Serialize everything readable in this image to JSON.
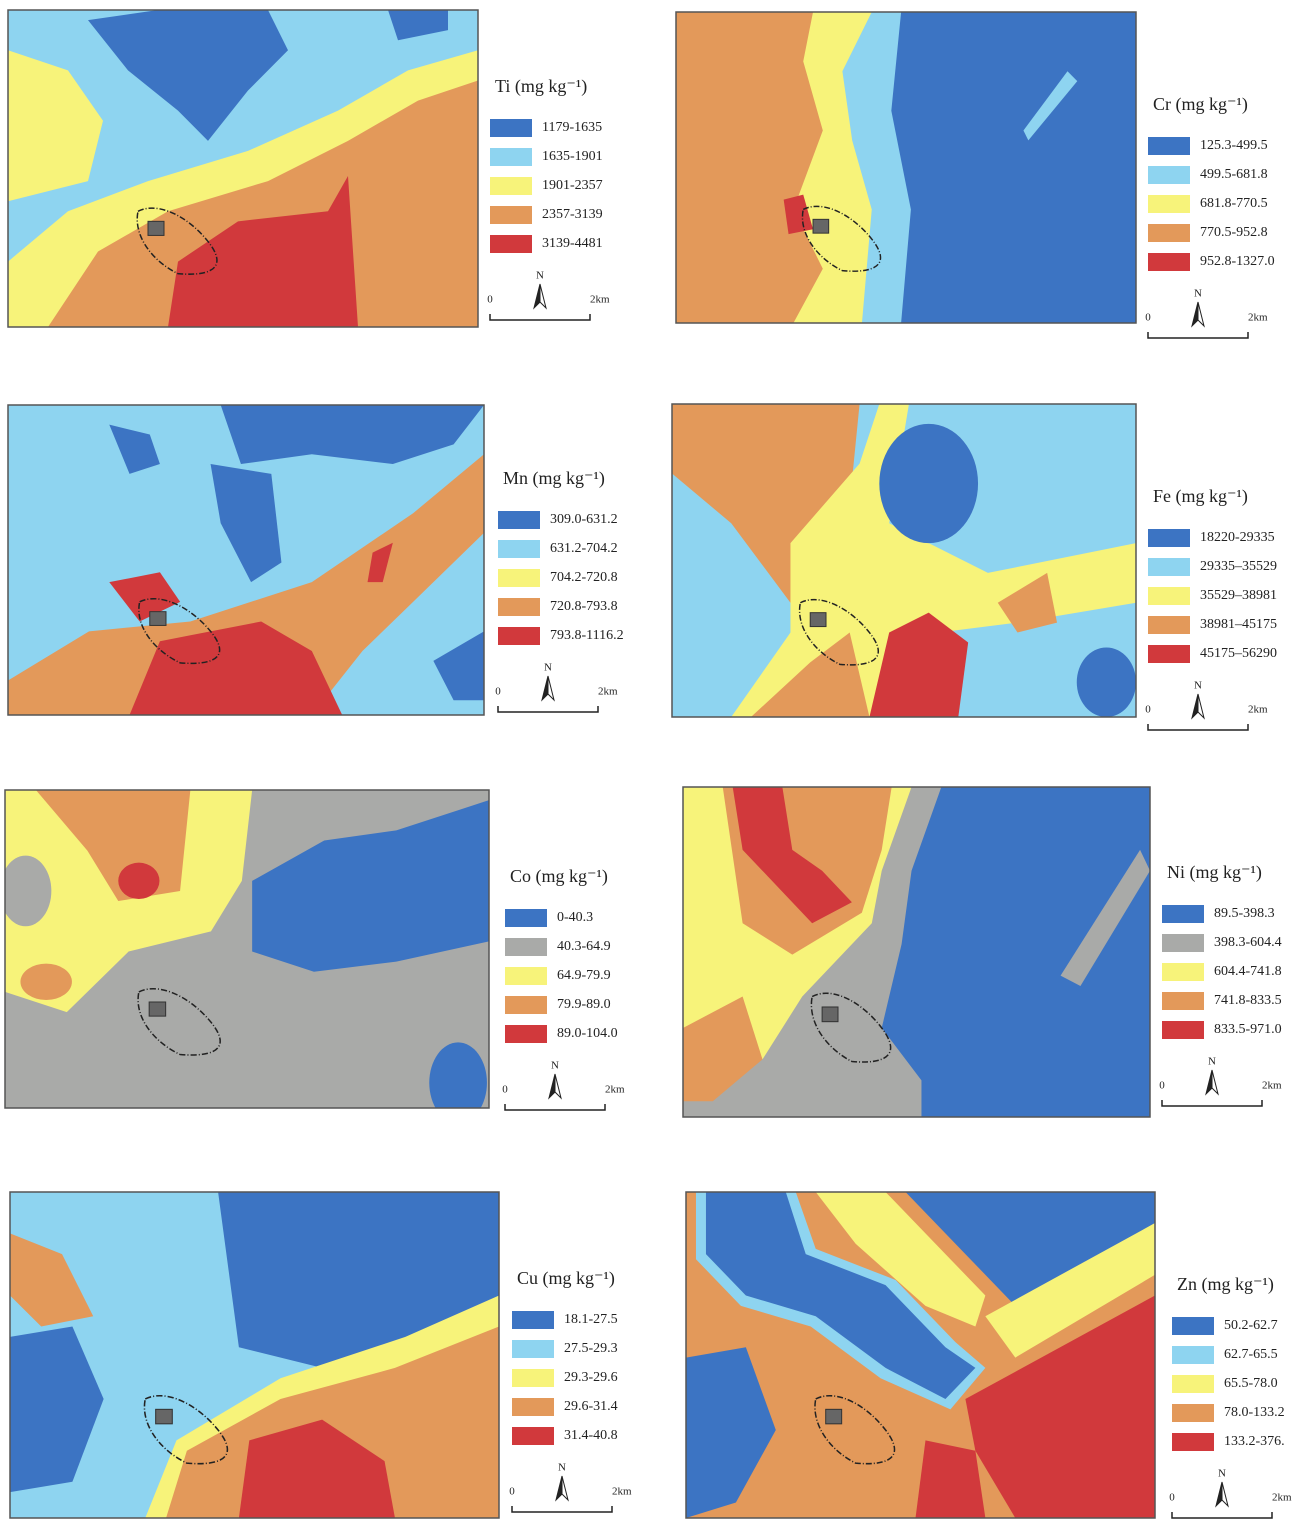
{
  "panels": [
    {
      "legend_title": "Ti (mg kg⁻¹)",
      "north": "N",
      "scale": [
        "0",
        "2km"
      ],
      "classes": [
        {
          "label": "1179-1635",
          "color": "#3c74c3"
        },
        {
          "label": "1635-1901",
          "color": "#8ed4f0"
        },
        {
          "label": "1901-2357",
          "color": "#f7f37a"
        },
        {
          "label": "2357-3139",
          "color": "#e3995a"
        },
        {
          "label": "3139-4481",
          "color": "#d1393c"
        }
      ]
    },
    {
      "legend_title": "Cr (mg kg⁻¹)",
      "north": "N",
      "scale": [
        "0",
        "2km"
      ],
      "classes": [
        {
          "label": "125.3-499.5",
          "color": "#3c74c3"
        },
        {
          "label": "499.5-681.8",
          "color": "#8ed4f0"
        },
        {
          "label": "681.8-770.5",
          "color": "#f7f37a"
        },
        {
          "label": "770.5-952.8",
          "color": "#e3995a"
        },
        {
          "label": "952.8-1327.0",
          "color": "#d1393c"
        }
      ]
    },
    {
      "legend_title": "Mn (mg kg⁻¹)",
      "north": "N",
      "scale": [
        "0",
        "2km"
      ],
      "classes": [
        {
          "label": "309.0-631.2",
          "color": "#3c74c3"
        },
        {
          "label": "631.2-704.2",
          "color": "#8ed4f0"
        },
        {
          "label": "704.2-720.8",
          "color": "#f7f37a"
        },
        {
          "label": "720.8-793.8",
          "color": "#e3995a"
        },
        {
          "label": "793.8-1116.2",
          "color": "#d1393c"
        }
      ]
    },
    {
      "legend_title": "Fe (mg kg⁻¹)",
      "north": "N",
      "scale": [
        "0",
        "2km"
      ],
      "classes": [
        {
          "label": "18220-29335",
          "color": "#3c74c3"
        },
        {
          "label": "29335–35529",
          "color": "#8ed4f0"
        },
        {
          "label": "35529–38981",
          "color": "#f7f37a"
        },
        {
          "label": "38981–45175",
          "color": "#e3995a"
        },
        {
          "label": "45175–56290",
          "color": "#d1393c"
        }
      ]
    },
    {
      "legend_title": "Co (mg kg⁻¹)",
      "north": "N",
      "scale": [
        "0",
        "2km"
      ],
      "classes": [
        {
          "label": "0-40.3",
          "color": "#3c74c3"
        },
        {
          "label": "40.3-64.9",
          "color": "#a9aaa8"
        },
        {
          "label": "64.9-79.9",
          "color": "#f7f37a"
        },
        {
          "label": "79.9-89.0",
          "color": "#e3995a"
        },
        {
          "label": "89.0-104.0",
          "color": "#d1393c"
        }
      ]
    },
    {
      "legend_title": "Ni (mg kg⁻¹)",
      "north": "N",
      "scale": [
        "0",
        "2km"
      ],
      "classes": [
        {
          "label": "89.5-398.3",
          "color": "#3c74c3"
        },
        {
          "label": "398.3-604.4",
          "color": "#a9aaa8"
        },
        {
          "label": "604.4-741.8",
          "color": "#f7f37a"
        },
        {
          "label": "741.8-833.5",
          "color": "#e3995a"
        },
        {
          "label": "833.5-971.0",
          "color": "#d1393c"
        }
      ]
    },
    {
      "legend_title": "Cu (mg kg⁻¹)",
      "north": "N",
      "scale": [
        "0",
        "2km"
      ],
      "classes": [
        {
          "label": "18.1-27.5",
          "color": "#3c74c3"
        },
        {
          "label": "27.5-29.3",
          "color": "#8ed4f0"
        },
        {
          "label": "29.3-29.6",
          "color": "#f7f37a"
        },
        {
          "label": "29.6-31.4",
          "color": "#e3995a"
        },
        {
          "label": "31.4-40.8",
          "color": "#d1393c"
        }
      ]
    },
    {
      "legend_title": "Zn (mg kg⁻¹)",
      "north": "N",
      "scale": [
        "0",
        "2km"
      ],
      "classes": [
        {
          "label": "50.2-62.7",
          "color": "#3c74c3"
        },
        {
          "label": "62.7-65.5",
          "color": "#8ed4f0"
        },
        {
          "label": "65.5-78.0",
          "color": "#f7f37a"
        },
        {
          "label": "78.0-133.2",
          "color": "#e3995a"
        },
        {
          "label": "133.2-376.",
          "color": "#d1393c"
        }
      ]
    }
  ]
}
